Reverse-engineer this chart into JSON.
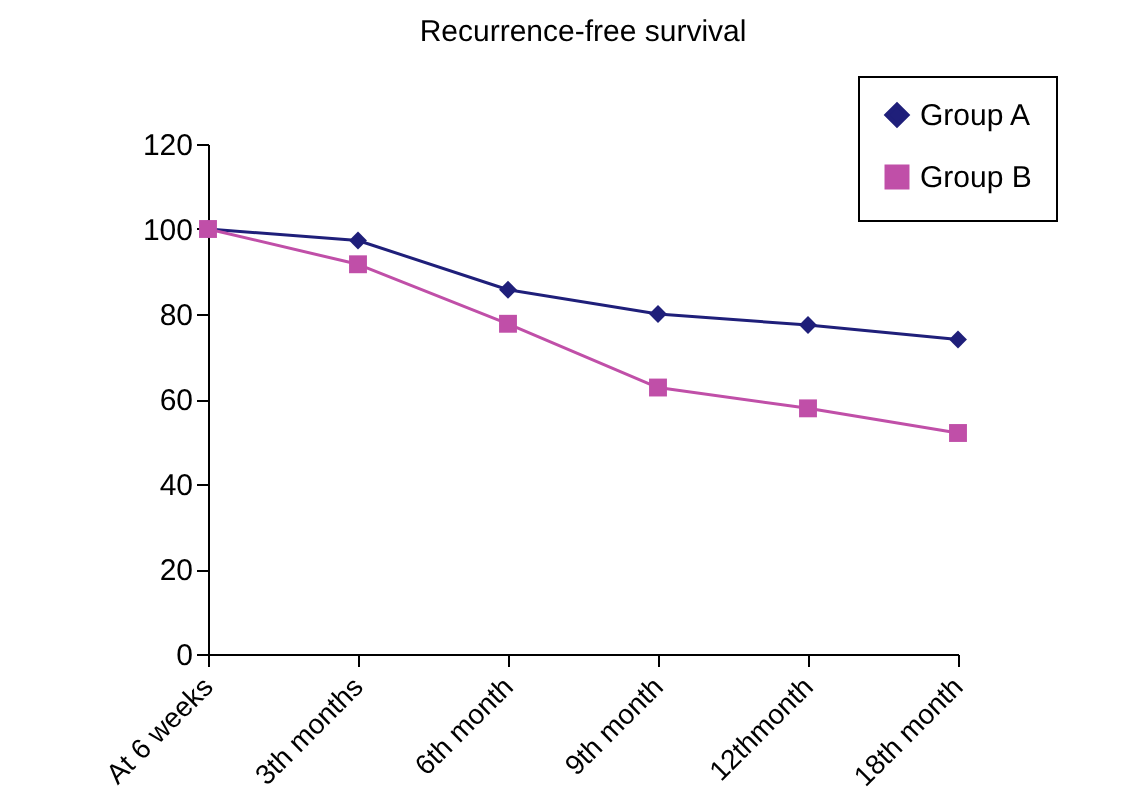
{
  "chart_data": {
    "type": "line",
    "title": "Recurrence-free survival",
    "categories": [
      "At 6 weeks",
      "3th months",
      "6th month",
      "9th month",
      "12thmonth",
      "18th month"
    ],
    "series": [
      {
        "name": "Group A",
        "color": "#1f1f7a",
        "marker": "diamond",
        "values": [
          100,
          97.3,
          85.7,
          80,
          77.4,
          74
        ]
      },
      {
        "name": "Group B",
        "color": "#c04fa8",
        "marker": "square",
        "values": [
          100,
          91.7,
          77.7,
          62.7,
          57.8,
          52
        ]
      }
    ],
    "ylim": [
      0,
      120
    ],
    "yticks": [
      0,
      20,
      40,
      60,
      80,
      100,
      120
    ],
    "grid": false,
    "legend": "top right"
  }
}
